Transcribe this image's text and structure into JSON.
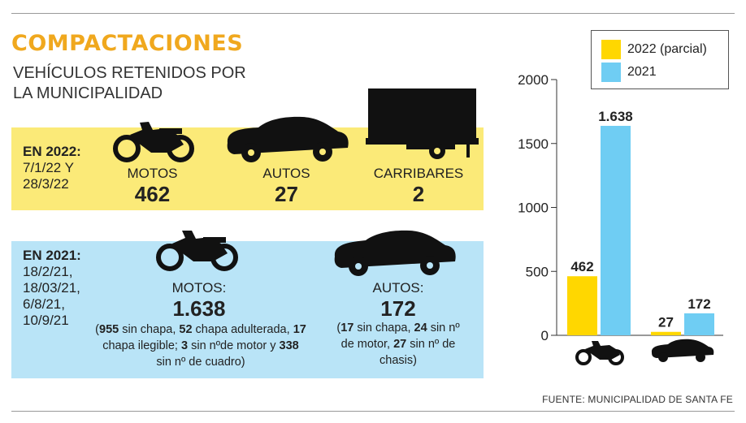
{
  "title": "COMPACTACIONES",
  "subtitle": "VEHÍCULOS RETENIDOS POR LA MUNICIPALIDAD",
  "period_2022": {
    "head": "EN 2022:",
    "dates": "7/1/22 Y 28/3/22",
    "items": [
      {
        "label": "MOTOS",
        "value": "462",
        "icon": "motorcycle-icon"
      },
      {
        "label": "AUTOS",
        "value": "27",
        "icon": "car-icon"
      },
      {
        "label": "CARRIBARES",
        "value": "2",
        "icon": "trailer-icon"
      }
    ]
  },
  "period_2021": {
    "head": "EN 2021:",
    "dates": "18/2/21, 18/03/21, 6/8/21, 10/9/21",
    "motos": {
      "label": "MOTOS:",
      "value": "1.638",
      "detail": {
        "open": "(",
        "n1": "955",
        "t1": " sin chapa, ",
        "n2": "52",
        "t2": " chapa adulterada, ",
        "n3": "17",
        "t3": " chapa ilegible; ",
        "n4": "3",
        "t4": " sin nºde motor y ",
        "n5": "338",
        "t5": " sin nº de cuadro)"
      }
    },
    "autos": {
      "label": "AUTOS:",
      "value": "172",
      "detail": {
        "open": "(",
        "n1": "17",
        "t1": " sin chapa, ",
        "n2": "24",
        "t2": " sin nº de motor, ",
        "n3": "27",
        "t3": " sin nº de chasis)"
      }
    }
  },
  "legend": [
    {
      "label": "2022 (parcial)",
      "color": "#ffd700"
    },
    {
      "label": "2021",
      "color": "#6fcdf3"
    }
  ],
  "source": "FUENTE: MUNICIPALIDAD DE SANTA FE",
  "chart_data": {
    "type": "bar",
    "categories": [
      "motos",
      "autos"
    ],
    "category_icons": [
      "motorcycle-icon",
      "car-icon"
    ],
    "series": [
      {
        "name": "2022 (parcial)",
        "values": [
          462,
          27
        ],
        "labels": [
          "462",
          "27"
        ],
        "color": "#ffd700"
      },
      {
        "name": "2021",
        "values": [
          1638,
          172
        ],
        "labels": [
          "1.638",
          "172"
        ],
        "color": "#6fcdf3"
      }
    ],
    "ylim": [
      0,
      2000
    ],
    "yticks": [
      0,
      500,
      1000,
      1500,
      2000
    ],
    "ytick_labels": [
      "0",
      "500",
      "1000",
      "1500",
      "2000"
    ],
    "grid": false,
    "legend_position": "top"
  }
}
